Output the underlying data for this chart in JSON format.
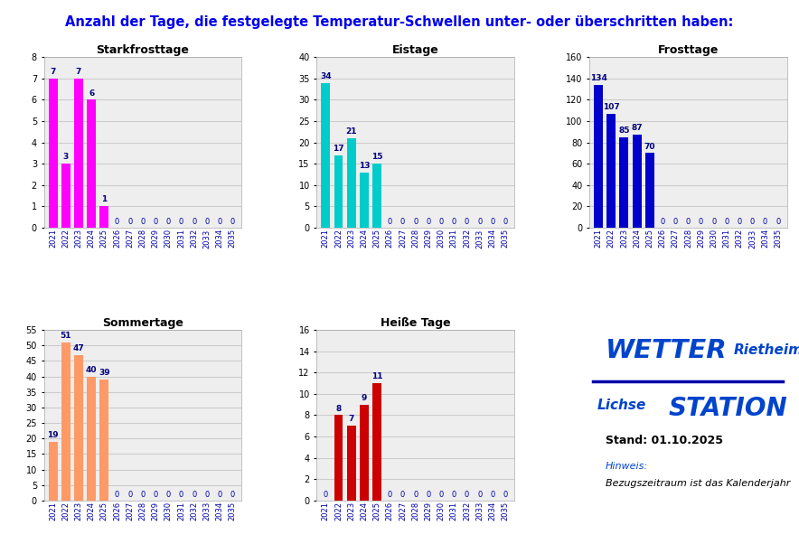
{
  "title": "Anzahl der Tage, die festgelegte Temperatur-Schwellen unter- oder überschritten haben:",
  "title_color": "#0000EE",
  "background_color": "#FFFFFF",
  "years": [
    "2021",
    "2022",
    "2023",
    "2024",
    "2025",
    "2026",
    "2027",
    "2028",
    "2029",
    "2030",
    "2031",
    "2032",
    "2033",
    "2034",
    "2035"
  ],
  "starkfrosttage": {
    "title": "Starkfrosttage",
    "values": [
      7,
      3,
      7,
      6,
      1,
      0,
      0,
      0,
      0,
      0,
      0,
      0,
      0,
      0,
      0
    ],
    "color": "#FF00FF",
    "ylim": [
      0,
      8
    ],
    "yticks": [
      0,
      1,
      2,
      3,
      4,
      5,
      6,
      7,
      8
    ]
  },
  "eistage": {
    "title": "Eistage",
    "values": [
      34,
      17,
      21,
      13,
      15,
      0,
      0,
      0,
      0,
      0,
      0,
      0,
      0,
      0,
      0
    ],
    "color": "#00CCCC",
    "ylim": [
      0,
      40
    ],
    "yticks": [
      0,
      5,
      10,
      15,
      20,
      25,
      30,
      35,
      40
    ]
  },
  "frosttage": {
    "title": "Frosttage",
    "values": [
      134,
      107,
      85,
      87,
      70,
      0,
      0,
      0,
      0,
      0,
      0,
      0,
      0,
      0,
      0
    ],
    "color": "#0000CC",
    "ylim": [
      0,
      160
    ],
    "yticks": [
      0,
      20,
      40,
      60,
      80,
      100,
      120,
      140,
      160
    ]
  },
  "sommertage": {
    "title": "Sommertage",
    "values": [
      19,
      51,
      47,
      40,
      39,
      0,
      0,
      0,
      0,
      0,
      0,
      0,
      0,
      0,
      0
    ],
    "color": "#FF9966",
    "ylim": [
      0,
      55
    ],
    "yticks": [
      0,
      5,
      10,
      15,
      20,
      25,
      30,
      35,
      40,
      45,
      50,
      55
    ]
  },
  "heisse_tage": {
    "title": "Heiße Tage",
    "values": [
      0,
      8,
      7,
      9,
      11,
      0,
      0,
      0,
      0,
      0,
      0,
      0,
      0,
      0,
      0
    ],
    "color": "#CC0000",
    "ylim": [
      0,
      16
    ],
    "yticks": [
      0,
      2,
      4,
      6,
      8,
      10,
      12,
      14,
      16
    ]
  },
  "stand_text": "Stand: 01.10.2025",
  "hinweis_label": "Hinweis:",
  "hinweis_text": "Bezugszeitraum ist das Kalenderjahr",
  "grid_color": "#CCCCCC",
  "tick_label_color": "#0000AA",
  "bar_label_color": "#000080",
  "subplot_bg": "#EEEEEE"
}
